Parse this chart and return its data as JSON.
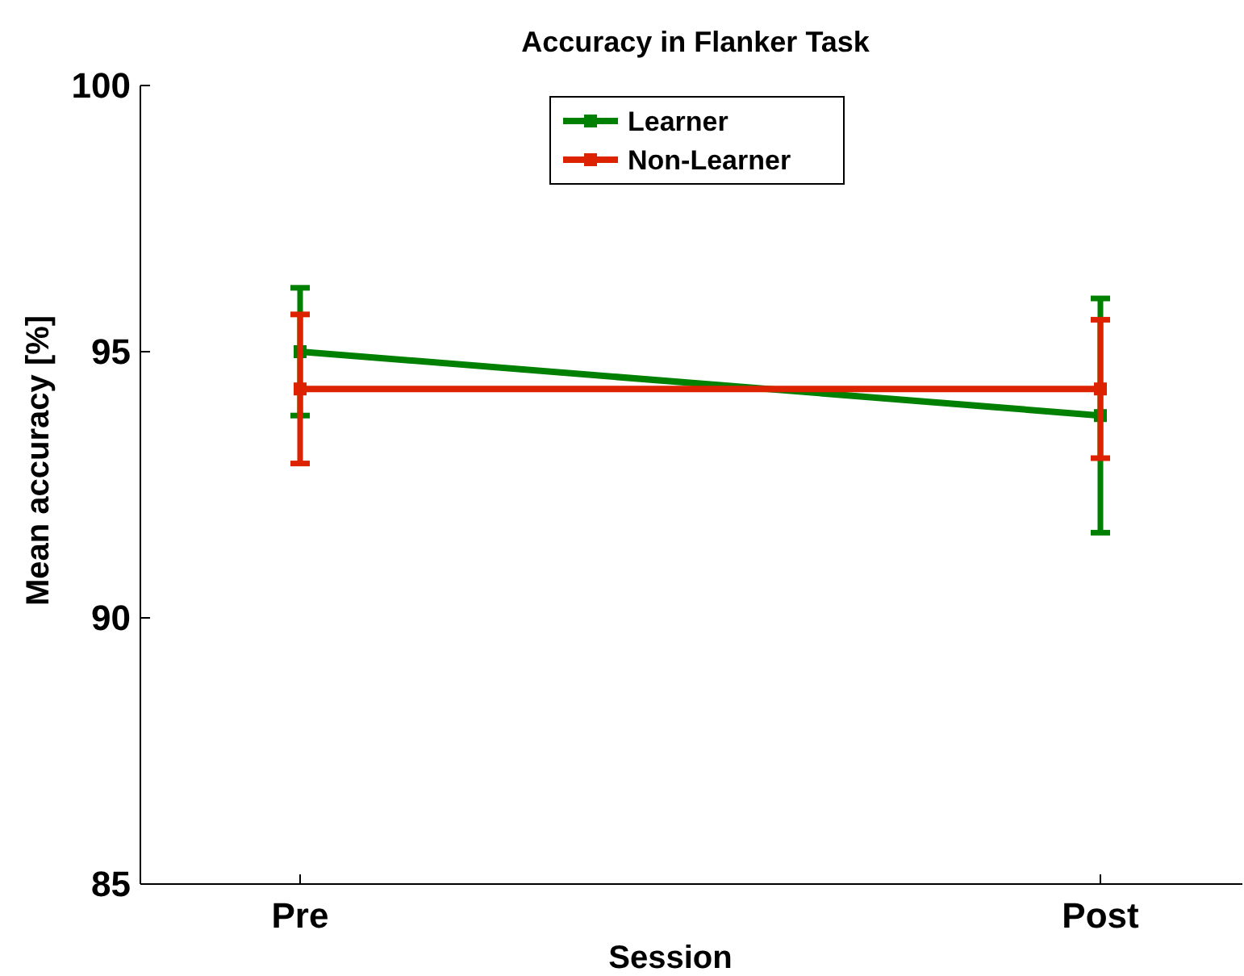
{
  "chart_data": {
    "type": "line",
    "title": "Accuracy in Flanker Task",
    "xlabel": "Session",
    "ylabel": "Mean accuracy [%]",
    "categories": [
      "Pre",
      "Post"
    ],
    "series": [
      {
        "name": "Learner",
        "color": "#008000",
        "values": [
          95.0,
          93.8
        ],
        "errors": [
          1.2,
          2.2
        ]
      },
      {
        "name": "Non-Learner",
        "color": "#dd2200",
        "values": [
          94.3,
          94.3
        ],
        "errors": [
          1.4,
          1.3
        ]
      }
    ],
    "ylim": [
      85,
      100
    ],
    "yticks": [
      85,
      90,
      95,
      100
    ],
    "legend": "top",
    "marker": "square",
    "line_style": "solid",
    "grid": false
  }
}
